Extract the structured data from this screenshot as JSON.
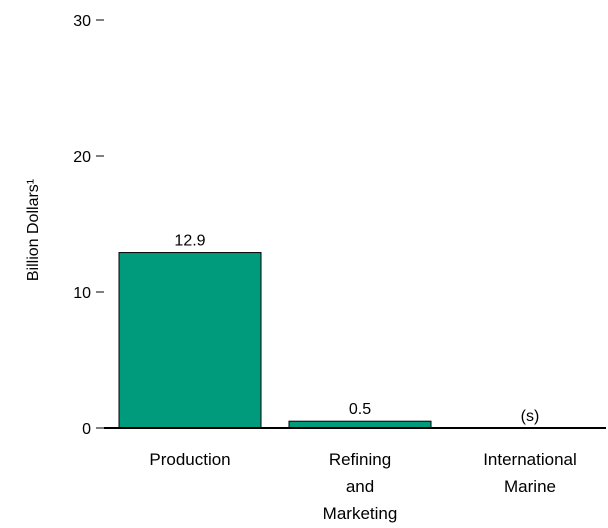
{
  "chart_data": {
    "type": "bar",
    "title": "",
    "xlabel": "",
    "ylabel": "Billion Dollars¹",
    "ylim": [
      0,
      30
    ],
    "yticks": [
      "0",
      "10",
      "20",
      "30"
    ],
    "grid": false,
    "bar_color": "#009b7d",
    "categories": [
      [
        "Production"
      ],
      [
        "Refining",
        "and",
        "Marketing"
      ],
      [
        "International",
        "Marine"
      ]
    ],
    "values": [
      12.9,
      0.5,
      0
    ],
    "data_labels": [
      "12.9",
      "0.5",
      "(s)"
    ]
  }
}
